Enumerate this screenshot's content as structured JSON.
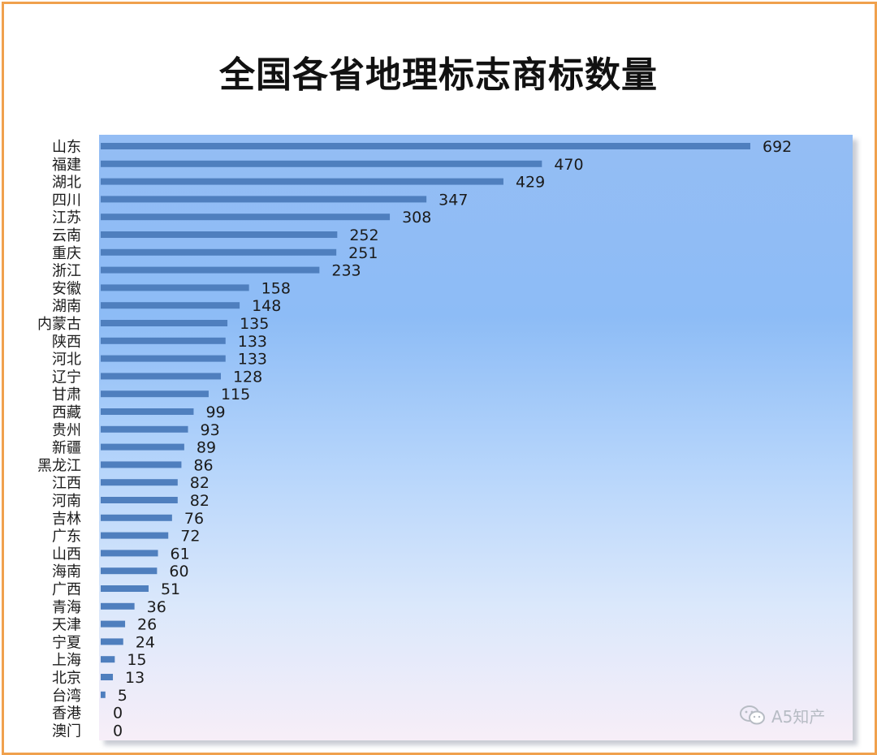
{
  "chart_data": {
    "type": "bar",
    "orientation": "horizontal",
    "title": "全国各省地理标志商标数量",
    "xlabel": "",
    "ylabel": "",
    "xlim": [
      0,
      700
    ],
    "grid": false,
    "legend": "none",
    "bar_color": "#4f7fbe",
    "categories": [
      "山东",
      "福建",
      "湖北",
      "四川",
      "江苏",
      "云南",
      "重庆",
      "浙江",
      "安徽",
      "湖南",
      "内蒙古",
      "陕西",
      "河北",
      "辽宁",
      "甘肃",
      "西藏",
      "贵州",
      "新疆",
      "黑龙江",
      "江西",
      "河南",
      "吉林",
      "广东",
      "山西",
      "海南",
      "广西",
      "青海",
      "天津",
      "宁夏",
      "上海",
      "北京",
      "台湾",
      "香港",
      "澳门"
    ],
    "values": [
      692,
      470,
      429,
      347,
      308,
      252,
      251,
      233,
      158,
      148,
      135,
      133,
      133,
      128,
      115,
      99,
      93,
      89,
      86,
      82,
      82,
      76,
      72,
      61,
      60,
      51,
      36,
      26,
      24,
      15,
      13,
      5,
      0,
      0
    ]
  },
  "watermark": {
    "text": "A5知产",
    "icon": "wechat-icon"
  }
}
